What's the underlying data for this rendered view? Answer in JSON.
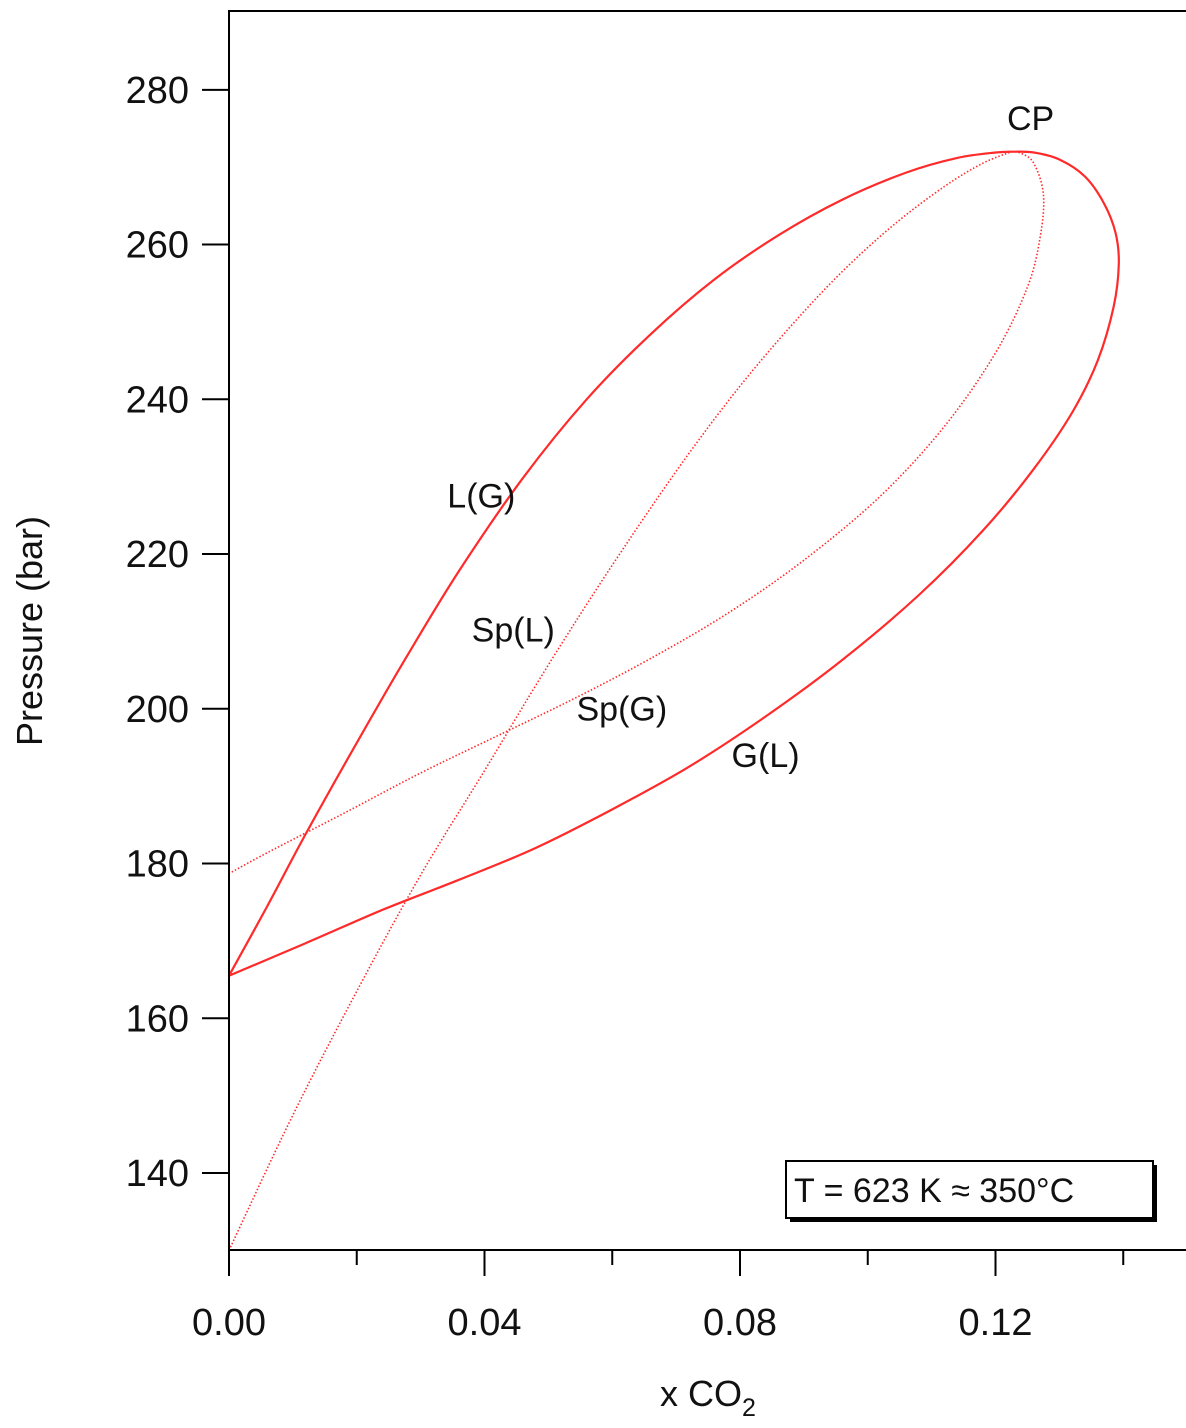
{
  "chart_data": {
    "type": "line",
    "xlabel": "x CO",
    "xlabel_subscript": "2",
    "ylabel": "Pressure (bar)",
    "xlim": [
      0.0,
      0.15
    ],
    "ylim": [
      130,
      290
    ],
    "x_ticks": [
      {
        "value": 0.0,
        "label": "0.00"
      },
      {
        "value": 0.04,
        "label": "0.04"
      },
      {
        "value": 0.08,
        "label": "0.08"
      },
      {
        "value": 0.12,
        "label": "0.12"
      }
    ],
    "x_minor_ticks": [
      0.02,
      0.06,
      0.1,
      0.14
    ],
    "y_ticks": [
      {
        "value": 140,
        "label": "140"
      },
      {
        "value": 160,
        "label": "160"
      },
      {
        "value": 180,
        "label": "180"
      },
      {
        "value": 200,
        "label": "200"
      },
      {
        "value": 220,
        "label": "220"
      },
      {
        "value": 240,
        "label": "240"
      },
      {
        "value": 260,
        "label": "260"
      },
      {
        "value": 280,
        "label": "280"
      }
    ],
    "grid": false,
    "line_color": "#ff2a2a",
    "series": [
      {
        "name": "L(G)",
        "style": "solid",
        "x": [
          0.0,
          0.006,
          0.012,
          0.02,
          0.028,
          0.036,
          0.046,
          0.056,
          0.066,
          0.076,
          0.086,
          0.096,
          0.106,
          0.114,
          0.12,
          0.1225
        ],
        "y": [
          165.5,
          174.5,
          183.8,
          195.6,
          207.0,
          217.8,
          229.8,
          240.0,
          248.4,
          255.5,
          261.2,
          265.8,
          269.3,
          271.2,
          271.9,
          272.0
        ]
      },
      {
        "name": "G(L)",
        "style": "solid",
        "x": [
          0.1225,
          0.126,
          0.13,
          0.134,
          0.137,
          0.1388,
          0.1393,
          0.1385,
          0.136,
          0.132,
          0.126,
          0.118,
          0.108,
          0.096,
          0.084,
          0.072,
          0.06,
          0.048,
          0.036,
          0.024,
          0.012,
          0.0
        ],
        "y": [
          272.0,
          271.9,
          271.0,
          268.8,
          265.3,
          261.5,
          257.5,
          252.0,
          245.0,
          238.3,
          231.0,
          223.0,
          214.7,
          206.3,
          199.0,
          192.5,
          187.0,
          182.0,
          177.9,
          174.0,
          169.7,
          165.5
        ]
      },
      {
        "name": "Sp(L)",
        "style": "dotted",
        "x": [
          0.0,
          0.01,
          0.02,
          0.03,
          0.04,
          0.048,
          0.056,
          0.064,
          0.072,
          0.08,
          0.088,
          0.096,
          0.104,
          0.112,
          0.118,
          0.1225
        ],
        "y": [
          130.0,
          147.5,
          163.5,
          178.5,
          192.0,
          203.0,
          213.5,
          223.5,
          233.0,
          241.7,
          249.5,
          256.5,
          262.5,
          267.5,
          270.5,
          272.0
        ]
      },
      {
        "name": "Sp(G)",
        "style": "dotted",
        "x": [
          0.1225,
          0.124,
          0.126,
          0.1275,
          0.127,
          0.125,
          0.12,
          0.112,
          0.102,
          0.09,
          0.078,
          0.066,
          0.054,
          0.042,
          0.03,
          0.018,
          0.006,
          0.0
        ],
        "y": [
          272.0,
          271.8,
          270.5,
          266.5,
          261.0,
          254.5,
          246.0,
          236.5,
          227.5,
          219.2,
          212.3,
          206.5,
          201.3,
          196.5,
          191.7,
          186.5,
          181.4,
          178.7
        ]
      }
    ],
    "annotations": [
      {
        "text": "CP",
        "x": 0.1255,
        "y": 274.8,
        "anchor": "middle"
      },
      {
        "text": "L(G)",
        "x": 0.0395,
        "y": 226.0,
        "anchor": "middle"
      },
      {
        "text": "Sp(L)",
        "x": 0.0445,
        "y": 208.7,
        "anchor": "middle"
      },
      {
        "text": "Sp(G)",
        "x": 0.0615,
        "y": 198.5,
        "anchor": "middle"
      },
      {
        "text": "G(L)",
        "x": 0.084,
        "y": 192.5,
        "anchor": "middle"
      }
    ],
    "inset_label": "T = 623 K ≈ 350°C"
  }
}
